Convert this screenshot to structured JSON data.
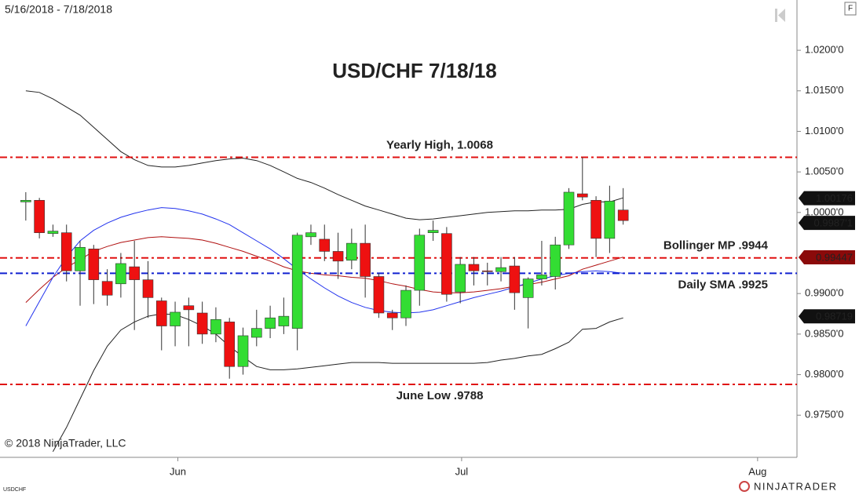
{
  "chart_data": {
    "type": "candlestick",
    "title": "USD/CHF 7/18/18",
    "date_range": "5/16/2018 - 7/18/2018",
    "copyright": "© 2018 NinjaTrader, LLC",
    "instrument": "USDCHF",
    "brand": "NINJATRADER",
    "panel_button": "F",
    "categories": [
      "2018-05-16",
      "2018-05-17",
      "2018-05-18",
      "2018-05-21",
      "2018-05-22",
      "2018-05-23",
      "2018-05-24",
      "2018-05-25",
      "2018-05-28",
      "2018-05-29",
      "2018-05-30",
      "2018-05-31",
      "2018-06-01",
      "2018-06-04",
      "2018-06-05",
      "2018-06-06",
      "2018-06-07",
      "2018-06-08",
      "2018-06-11",
      "2018-06-12",
      "2018-06-13",
      "2018-06-14",
      "2018-06-15",
      "2018-06-18",
      "2018-06-19",
      "2018-06-20",
      "2018-06-21",
      "2018-06-22",
      "2018-06-25",
      "2018-06-26",
      "2018-06-27",
      "2018-06-28",
      "2018-06-29",
      "2018-07-02",
      "2018-07-03",
      "2018-07-04",
      "2018-07-05",
      "2018-07-06",
      "2018-07-09",
      "2018-07-10",
      "2018-07-11",
      "2018-07-12",
      "2018-07-13",
      "2018-07-16",
      "2018-07-17"
    ],
    "open": [
      1.0013,
      1.0015,
      0.9974,
      0.9975,
      0.9928,
      0.9955,
      0.9915,
      0.9912,
      0.9933,
      0.9917,
      0.9891,
      0.986,
      0.9885,
      0.9876,
      0.985,
      0.9865,
      0.981,
      0.9846,
      0.9857,
      0.986,
      0.9857,
      0.997,
      0.9967,
      0.9952,
      0.9941,
      0.9962,
      0.9921,
      0.9876,
      0.987,
      0.9904,
      0.9975,
      0.9974,
      0.9902,
      0.9936,
      0.9928,
      0.9927,
      0.9934,
      0.9895,
      0.9918,
      0.9921,
      0.996,
      1.0023,
      1.0015,
      0.9968,
      1.0003
    ],
    "high": [
      1.0025,
      1.0018,
      0.9985,
      0.9985,
      0.9965,
      0.996,
      0.993,
      0.995,
      0.9965,
      0.994,
      0.9895,
      0.989,
      0.9895,
      0.989,
      0.9883,
      0.987,
      0.9858,
      0.988,
      0.9885,
      0.9895,
      0.9975,
      0.9985,
      0.9985,
      0.9975,
      0.998,
      0.9985,
      0.9925,
      0.988,
      0.991,
      0.998,
      0.999,
      0.9982,
      0.9945,
      0.9945,
      0.9938,
      0.9945,
      0.9945,
      0.992,
      0.9965,
      0.997,
      1.003,
      1.0068,
      1.002,
      1.0033,
      1.003
    ],
    "low": [
      0.999,
      0.9968,
      0.997,
      0.9915,
      0.9885,
      0.9887,
      0.9885,
      0.9895,
      0.9855,
      0.987,
      0.983,
      0.9835,
      0.9835,
      0.9838,
      0.984,
      0.9795,
      0.98,
      0.9835,
      0.9845,
      0.985,
      0.983,
      0.996,
      0.994,
      0.9918,
      0.993,
      0.9895,
      0.987,
      0.9855,
      0.986,
      0.9885,
      0.9965,
      0.989,
      0.9888,
      0.991,
      0.991,
      0.9915,
      0.988,
      0.9857,
      0.991,
      0.9905,
      0.9955,
      1.0015,
      0.9945,
      0.995,
      0.9985
    ],
    "close": [
      1.0015,
      0.9975,
      0.9977,
      0.9928,
      0.9957,
      0.9917,
      0.9898,
      0.9937,
      0.9917,
      0.9895,
      0.986,
      0.9877,
      0.988,
      0.985,
      0.9868,
      0.981,
      0.9848,
      0.9857,
      0.987,
      0.9872,
      0.9972,
      0.9975,
      0.9952,
      0.994,
      0.9962,
      0.9921,
      0.9876,
      0.987,
      0.9904,
      0.9972,
      0.9978,
      0.9899,
      0.9936,
      0.9928,
      0.9927,
      0.9932,
      0.9901,
      0.9918,
      0.9923,
      0.996,
      1.0025,
      1.0019,
      0.9968,
      1.0014,
      0.999
    ],
    "up_color": "#33dd33",
    "down_color": "#ee1111",
    "series": [
      {
        "color": "#222222",
        "values": [
          1.015,
          1.0148,
          1.014,
          1.013,
          1.012,
          1.0105,
          1.009,
          1.0075,
          1.0065,
          1.0058,
          1.0056,
          1.0056,
          1.0058,
          1.0061,
          1.0064,
          1.0066,
          1.0067,
          1.0064,
          1.0058,
          1.005,
          1.0042,
          1.0037,
          1.003,
          1.0022,
          1.0015,
          1.0008,
          1.0003,
          0.9998,
          0.9993,
          0.9991,
          0.9992,
          0.9994,
          0.9996,
          0.9998,
          1.0,
          1.0001,
          1.0002,
          1.0002,
          1.0003,
          1.0003,
          1.0004,
          1.001,
          1.0013,
          1.0013,
          1.0018
        ]
      },
      {
        "color": "#222222",
        "values": [
          null,
          null,
          0.9705,
          0.9735,
          0.977,
          0.9805,
          0.9835,
          0.9855,
          0.9865,
          0.9872,
          0.9875,
          0.9874,
          0.9868,
          0.986,
          0.985,
          0.9835,
          0.9822,
          0.981,
          0.9806,
          0.9806,
          0.9807,
          0.9809,
          0.9811,
          0.9813,
          0.9815,
          0.9815,
          0.9815,
          0.9814,
          0.9814,
          0.9814,
          0.9814,
          0.9814,
          0.9814,
          0.9814,
          0.9815,
          0.9818,
          0.982,
          0.9823,
          0.9825,
          0.9832,
          0.984,
          0.9856,
          0.9857,
          0.9865,
          0.987
        ]
      },
      {
        "color": "#b01010",
        "values": [
          0.9889,
          0.9905,
          0.992,
          0.9932,
          0.9942,
          0.9952,
          0.9958,
          0.9963,
          0.9966,
          0.9969,
          0.997,
          0.9969,
          0.9968,
          0.9966,
          0.9962,
          0.9957,
          0.9952,
          0.9946,
          0.994,
          0.9933,
          0.9928,
          0.9925,
          0.9923,
          0.9922,
          0.992,
          0.9919,
          0.9916,
          0.9912,
          0.9909,
          0.9905,
          0.9902,
          0.9901,
          0.9901,
          0.9902,
          0.9904,
          0.9906,
          0.9909,
          0.9911,
          0.9914,
          0.9918,
          0.9922,
          0.993,
          0.9935,
          0.994,
          0.9945
        ]
      },
      {
        "color": "#2233ee",
        "values": [
          0.986,
          0.989,
          0.992,
          0.9945,
          0.9965,
          0.9978,
          0.9987,
          0.9994,
          0.9999,
          1.0003,
          1.0006,
          1.0005,
          1.0002,
          0.9998,
          0.9992,
          0.9985,
          0.9975,
          0.9965,
          0.9955,
          0.9943,
          0.993,
          0.9918,
          0.9907,
          0.9897,
          0.9889,
          0.9883,
          0.9879,
          0.9877,
          0.9876,
          0.9877,
          0.988,
          0.9885,
          0.989,
          0.9895,
          0.9899,
          0.9903,
          0.9908,
          0.9913,
          0.9918,
          0.9922,
          0.9925,
          0.9927,
          0.9928,
          0.9927,
          0.9925
        ]
      }
    ],
    "reference_lines": [
      {
        "text": "Yearly High, 1.0068",
        "value": 1.0068,
        "color": "#e01010",
        "position": "above"
      },
      {
        "text": "Bollinger MP .9944",
        "value": 0.9944,
        "color": "#e01010",
        "position": "above"
      },
      {
        "text": "Daily SMA .9925",
        "value": 0.9925,
        "color": "#1020d0",
        "position": "below"
      },
      {
        "text": "June Low .9788",
        "value": 0.9788,
        "color": "#e01010",
        "position": "below"
      }
    ],
    "price_markers": [
      {
        "value": 1.00176,
        "label": "1.00176",
        "color": "#111111"
      },
      {
        "value": 0.99871,
        "label": "0.9987'1",
        "color": "#111111"
      },
      {
        "value": 0.99447,
        "label": "0.99447",
        "color": "#8b0a0a"
      },
      {
        "value": 0.98719,
        "label": "0.98719",
        "color": "#111111"
      }
    ],
    "ylim": [
      0.9698,
      1.0262
    ],
    "yticks": [
      {
        "value": 1.02,
        "label": "1.0200'0"
      },
      {
        "value": 1.015,
        "label": "1.0150'0"
      },
      {
        "value": 1.01,
        "label": "1.0100'0"
      },
      {
        "value": 1.005,
        "label": "1.0050'0"
      },
      {
        "value": 1.0,
        "label": "1.0000'0"
      },
      {
        "value": 0.99,
        "label": "0.9900'0"
      },
      {
        "value": 0.985,
        "label": "0.9850'0"
      },
      {
        "value": 0.98,
        "label": "0.9800'0"
      },
      {
        "value": 0.975,
        "label": "0.9750'0"
      }
    ],
    "xlim": [
      -1.9,
      56.8
    ],
    "xticks": [
      {
        "value": 11.2,
        "label": "Jun"
      },
      {
        "value": 32.1,
        "label": "Jul"
      },
      {
        "value": 53.9,
        "label": "Aug"
      }
    ]
  }
}
